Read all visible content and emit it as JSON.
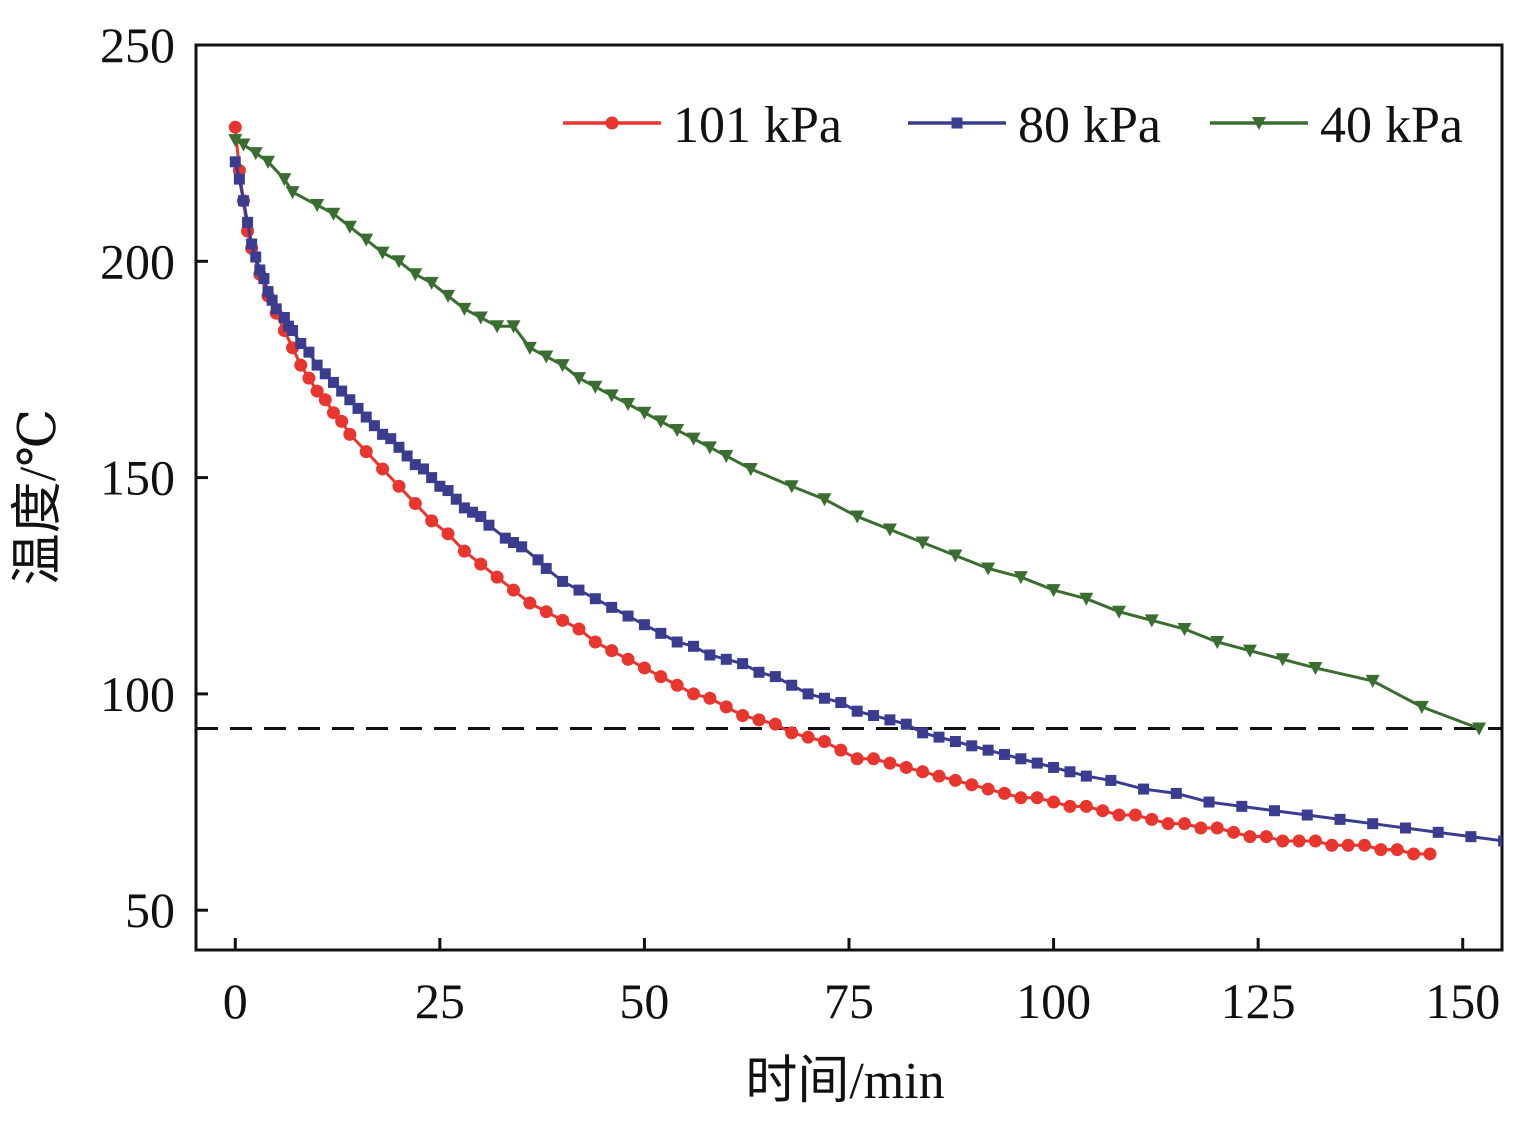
{
  "chart_data": {
    "type": "line",
    "title": "",
    "xlabel": "时间/min",
    "ylabel": "温度/℃",
    "xlim": [
      -4.8,
      154.8
    ],
    "ylim": [
      40.8,
      250
    ],
    "xticks": [
      0,
      25,
      50,
      75,
      100,
      125,
      150
    ],
    "yticks": [
      50,
      100,
      150,
      200,
      250
    ],
    "grid": false,
    "legend_position": "top-right",
    "reference_line": {
      "y": 92,
      "style": "dashed",
      "color": "#111111"
    },
    "series": [
      {
        "name": "101 kPa",
        "color": "#e8352e",
        "marker": "circle",
        "x": [
          0,
          0.5,
          1,
          1.5,
          2,
          3,
          4,
          5,
          6,
          7,
          8,
          9,
          10,
          11,
          12,
          13,
          14,
          16,
          18,
          20,
          22,
          24,
          26,
          28,
          30,
          32,
          34,
          36,
          38,
          40,
          42,
          44,
          46,
          48,
          50,
          52,
          54,
          56,
          58,
          60,
          62,
          64,
          66,
          68,
          70,
          72,
          74,
          76,
          78,
          80,
          82,
          84,
          86,
          88,
          90,
          92,
          94,
          96,
          98,
          100,
          102,
          104,
          106,
          108,
          110,
          112,
          114,
          116,
          118,
          120,
          122,
          124,
          126,
          128,
          130,
          132,
          134,
          136,
          138,
          140,
          142,
          144,
          146
        ],
        "y": [
          231,
          221,
          214,
          207,
          203,
          197,
          192,
          188,
          184,
          180,
          176,
          173,
          170,
          168,
          165,
          163,
          160,
          156,
          152,
          148,
          144,
          140,
          137,
          133,
          130,
          127,
          124,
          121,
          119,
          117,
          115,
          112,
          110,
          108,
          106,
          104,
          102,
          100,
          99,
          97,
          95,
          94,
          93,
          91,
          90,
          89,
          87,
          85,
          85,
          84,
          83,
          82,
          81,
          80,
          79,
          78,
          77,
          76,
          76,
          75,
          74,
          74,
          73,
          72,
          72,
          71,
          70,
          70,
          69,
          69,
          68,
          67,
          67,
          66,
          66,
          66,
          65,
          65,
          65,
          64,
          64,
          63,
          63
        ]
      },
      {
        "name": "80 kPa",
        "color": "#3a3d8f",
        "marker": "square",
        "x": [
          0,
          0.5,
          1,
          1.5,
          2,
          2.5,
          3,
          3.5,
          4,
          4.5,
          5,
          6,
          6.5,
          7,
          8,
          9,
          10,
          11,
          12,
          13,
          14,
          15,
          16,
          17,
          18,
          19,
          20,
          21,
          22,
          23,
          24,
          25,
          26,
          27,
          28,
          29,
          30,
          31,
          33,
          34,
          35,
          37,
          38,
          40,
          42,
          44,
          46,
          48,
          50,
          52,
          54,
          56,
          58,
          60,
          62,
          64,
          66,
          68,
          70,
          72,
          74,
          76,
          78,
          80,
          82,
          84,
          86,
          88,
          90,
          92,
          94,
          96,
          98,
          100,
          102,
          104,
          107,
          111,
          115,
          119,
          123,
          127,
          131,
          135,
          139,
          143,
          147,
          151,
          155
        ],
        "y": [
          223,
          219,
          214,
          209,
          204,
          201,
          198,
          196,
          193,
          191,
          189,
          187,
          185,
          184,
          181,
          179,
          176,
          174,
          172,
          170,
          168,
          166,
          164,
          162,
          160,
          159,
          157,
          155,
          153,
          152,
          150,
          148,
          147,
          145,
          143,
          142,
          141,
          139,
          136,
          135,
          134,
          131,
          129,
          126,
          124,
          122,
          120,
          118,
          116,
          114,
          112,
          111,
          109,
          108,
          107,
          105,
          104,
          102,
          100,
          99,
          98,
          96,
          95,
          94,
          93,
          91,
          90,
          89,
          88,
          87,
          86,
          85,
          84,
          83,
          82,
          81,
          80,
          78,
          77,
          75,
          74,
          73,
          72,
          71,
          70,
          69,
          68,
          67,
          66
        ]
      },
      {
        "name": "40 kPa",
        "color": "#3a6e30",
        "marker": "triangle-down",
        "x": [
          0,
          1,
          2.5,
          4,
          6,
          7,
          10,
          12,
          14,
          16,
          18,
          20,
          22,
          24,
          26,
          28,
          30,
          32,
          34,
          36,
          38,
          40,
          42,
          44,
          46,
          48,
          50,
          52,
          54,
          56,
          58,
          60,
          63,
          68,
          72,
          76,
          80,
          84,
          88,
          92,
          96,
          100,
          104,
          108,
          112,
          116,
          120,
          124,
          128,
          132,
          139,
          145,
          152
        ],
        "y": [
          228,
          227,
          225,
          223,
          219,
          216,
          213,
          211,
          208,
          205,
          202,
          200,
          197,
          195,
          192,
          189,
          187,
          185,
          185,
          180,
          178,
          176,
          173,
          171,
          169,
          167,
          165,
          163,
          161,
          159,
          157,
          155,
          152,
          148,
          145,
          141,
          138,
          135,
          132,
          129,
          127,
          124,
          122,
          119,
          117,
          115,
          112,
          110,
          108,
          106,
          103,
          97,
          92
        ]
      }
    ]
  }
}
